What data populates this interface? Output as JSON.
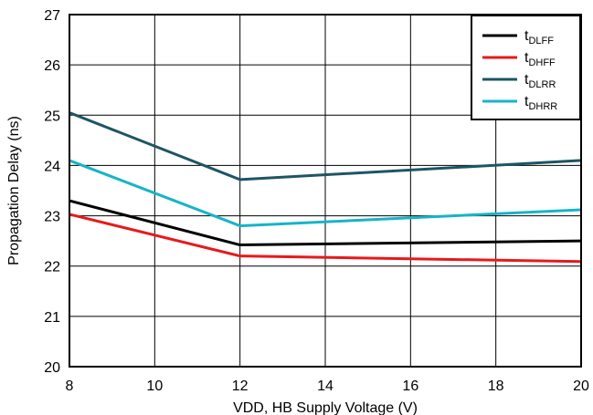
{
  "chart_data": {
    "type": "line",
    "title": "",
    "xlabel": "VDD, HB Supply Voltage (V)",
    "ylabel": "Propagation Delay (ns)",
    "xlim": [
      8,
      20
    ],
    "ylim": [
      20,
      27
    ],
    "xticks": [
      "8",
      "10",
      "12",
      "14",
      "16",
      "18",
      "20"
    ],
    "yticks": [
      "20",
      "21",
      "22",
      "23",
      "24",
      "25",
      "26",
      "27"
    ],
    "grid": true,
    "legend_position": "top-right",
    "x": [
      8,
      12,
      20
    ],
    "series": [
      {
        "name": "t",
        "sub": "DLFF",
        "color": "#000000",
        "values": [
          23.3,
          22.42,
          22.5
        ]
      },
      {
        "name": "t",
        "sub": "DHFF",
        "color": "#e8191a",
        "values": [
          23.03,
          22.2,
          22.09
        ]
      },
      {
        "name": "t",
        "sub": "DLRR",
        "color": "#1d5566",
        "values": [
          25.05,
          23.72,
          24.1
        ]
      },
      {
        "name": "t",
        "sub": "DHRR",
        "color": "#17b4c8",
        "values": [
          24.1,
          22.8,
          23.12
        ]
      }
    ]
  }
}
